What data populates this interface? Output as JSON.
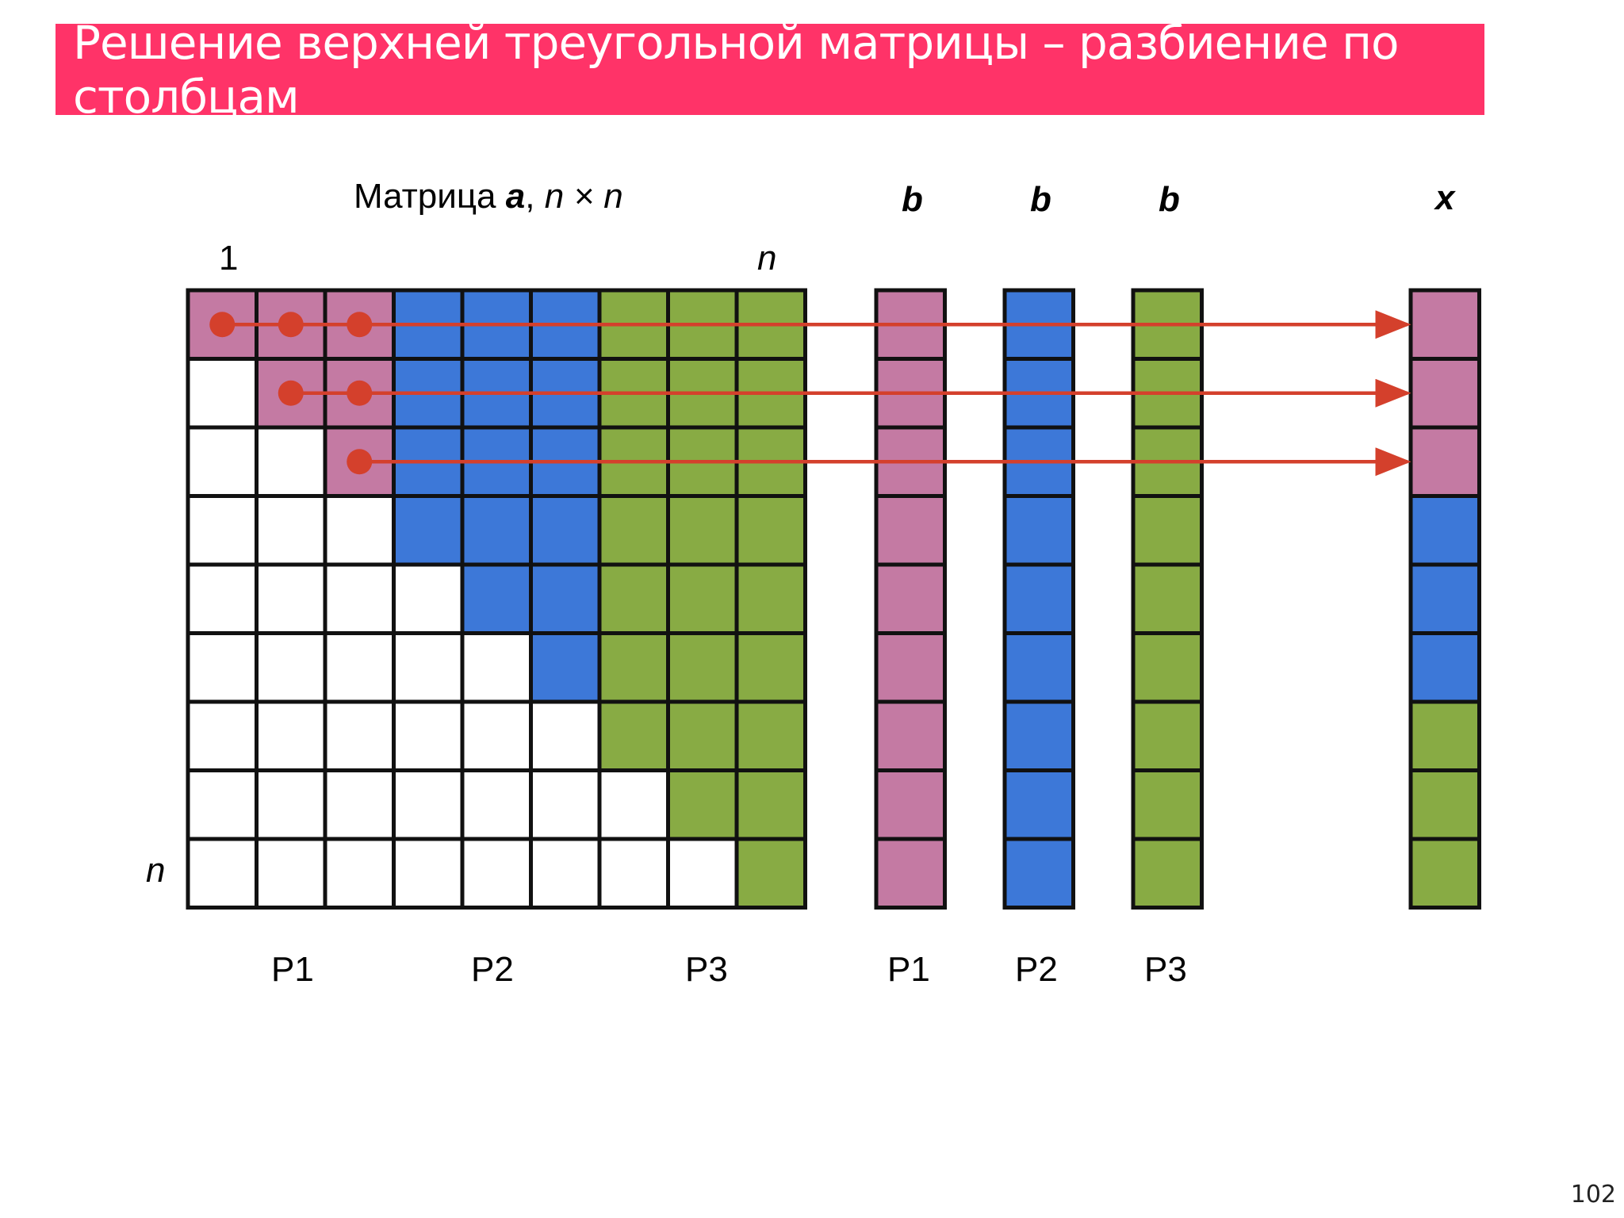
{
  "title": "Решение верхней треугольной матрицы – разбиение по столбцам",
  "page_number": "102",
  "matrix": {
    "caption_prefix": "Матрица ",
    "caption_name": "a",
    "caption_sep": ", ",
    "caption_dim": "n × n",
    "index_first": "1",
    "index_last_col": "n",
    "index_last_row": "n",
    "size": 9,
    "column_owners": [
      0,
      0,
      0,
      1,
      1,
      1,
      2,
      2,
      2
    ]
  },
  "vectors": [
    {
      "label": "b",
      "owner": 0
    },
    {
      "label": "b",
      "owner": 1
    },
    {
      "label": "b",
      "owner": 2
    },
    {
      "label": "x",
      "owner": -1
    }
  ],
  "x_owners": [
    0,
    0,
    0,
    1,
    1,
    1,
    2,
    2,
    2
  ],
  "process_labels_matrix": [
    "P1",
    "P2",
    "P3"
  ],
  "process_labels_vectors": [
    "P1",
    "P2",
    "P3"
  ],
  "active_dots": [
    [
      0,
      0
    ],
    [
      0,
      1
    ],
    [
      0,
      2
    ],
    [
      1,
      1
    ],
    [
      1,
      2
    ],
    [
      2,
      2
    ]
  ],
  "arrows_rows": [
    0,
    1,
    2
  ],
  "colors": {
    "p1": "#c47aa3",
    "p2": "#3d78d8",
    "p3": "#88ab44",
    "empty": "#ffffff",
    "grid": "#111111",
    "arrow": "#d4402c",
    "title_bg": "#ff3368"
  }
}
